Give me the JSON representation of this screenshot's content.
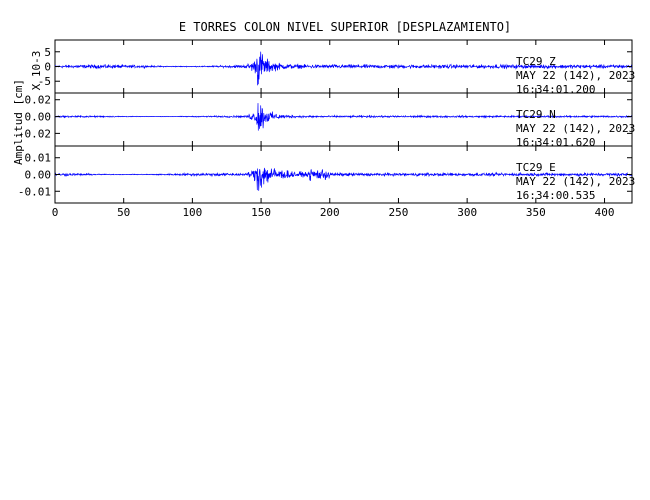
{
  "chart_data": {
    "type": "line",
    "title": "E TORRES COLON NIVEL SUPERIOR [DESPLAZAMIENTO]",
    "ylabel": "Amplitud [cm]",
    "xlabel": "",
    "line_color": "#0000ff",
    "xlim": [
      0,
      420
    ],
    "x_ticks": [
      0,
      50,
      100,
      150,
      200,
      250,
      300,
      350,
      400
    ],
    "x_tick_labels": [
      "0",
      "50",
      "100",
      "150",
      "200",
      "250",
      "300",
      "350",
      "400"
    ],
    "panels": [
      {
        "channel": "TC29  Z",
        "date": "MAY 22 (142), 2023",
        "time": "16:34:01.200",
        "scale_label": "X 10-3",
        "ylim": [
          -9,
          9
        ],
        "y_ticks": [
          5,
          0,
          -5
        ],
        "y_tick_labels": [
          "5",
          "0",
          "-5"
        ],
        "noise": 0.9,
        "peak": 8.0
      },
      {
        "channel": "TC29  N",
        "date": "MAY 22 (142), 2023",
        "time": "16:34:01.620",
        "scale_label": "",
        "ylim": [
          -0.035,
          0.028
        ],
        "y_ticks": [
          0.02,
          0.0,
          -0.02
        ],
        "y_tick_labels": [
          "0.02",
          "0.00",
          "-0.02"
        ],
        "noise": 0.0015,
        "peak": 0.028
      },
      {
        "channel": "TC29  E",
        "date": "MAY 22 (142), 2023",
        "time": "16:34:00.535",
        "scale_label": "",
        "ylim": [
          -0.017,
          0.017
        ],
        "y_ticks": [
          0.01,
          0.0,
          -0.01
        ],
        "y_tick_labels": [
          "0.01",
          "0.00",
          "-0.01"
        ],
        "noise": 0.0012,
        "peak": 0.014
      }
    ]
  }
}
